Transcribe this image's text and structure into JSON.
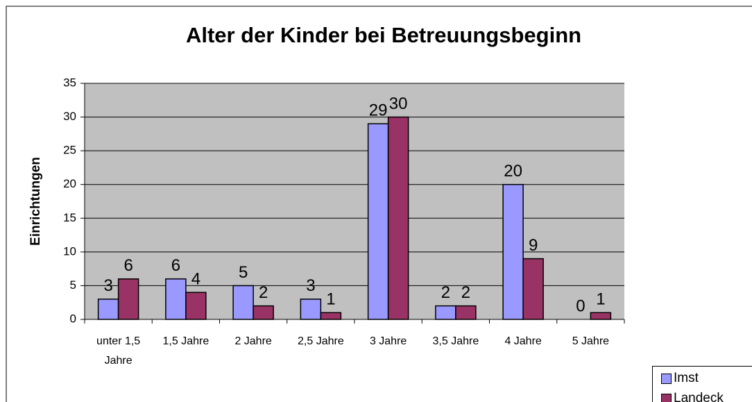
{
  "chart_data": {
    "type": "bar",
    "title": "Alter der Kinder bei Betreuungsbeginn",
    "y_label": "Einrichtungen",
    "categories": [
      "unter 1,5 Jahre",
      "1,5 Jahre",
      "2 Jahre",
      "2,5 Jahre",
      "3 Jahre",
      "3,5 Jahre",
      "4 Jahre",
      "5 Jahre"
    ],
    "series": [
      {
        "name": "Imst",
        "color": "#9999ff",
        "values": [
          3,
          6,
          5,
          3,
          29,
          2,
          20,
          0
        ]
      },
      {
        "name": "Landeck",
        "color": "#993366",
        "values": [
          6,
          4,
          2,
          1,
          30,
          2,
          9,
          1
        ]
      }
    ],
    "ylim": [
      0,
      35
    ],
    "yticks": [
      0,
      5,
      10,
      15,
      20,
      25,
      30,
      35
    ],
    "grid": true,
    "legend": "bottom-right",
    "plot_background": "#c0c0c0"
  }
}
